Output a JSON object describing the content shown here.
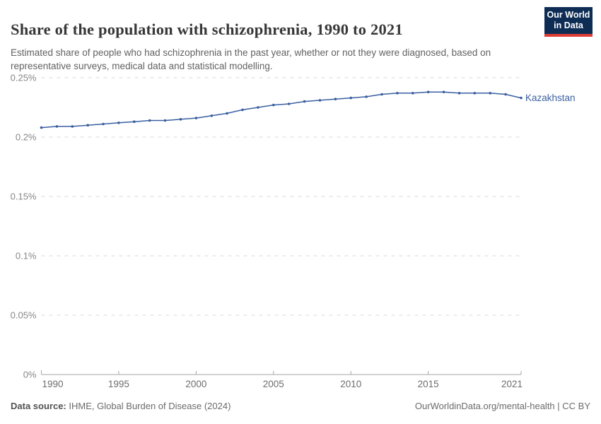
{
  "header": {
    "title": "Share of the population with schizophrenia, 1990 to 2021",
    "subtitle": "Estimated share of people who had schizophrenia in the past year, whether or not they were diagnosed, based on representative surveys, medical data and statistical modelling.",
    "logo": {
      "line1": "Our World",
      "line2": "in Data"
    }
  },
  "footer": {
    "datasource_label": "Data source:",
    "datasource_value": " IHME, Global Burden of Disease (2024)",
    "license": "OurWorldinData.org/mental-health | CC BY"
  },
  "colors": {
    "line": "#3a5fa0",
    "logo_bg": "#0e2d55",
    "logo_accent": "#dc3d33",
    "gridline": "#dadada",
    "axis": "#a5a5a5"
  },
  "chart_data": {
    "type": "line",
    "title": "Share of the population with schizophrenia, 1990 to 2021",
    "xlabel": "",
    "ylabel": "",
    "unit": "%",
    "grid": "horizontal-dashed",
    "legend": "end-of-line-label",
    "xlim": [
      1990,
      2021
    ],
    "ylim": [
      0,
      0.25
    ],
    "x": [
      1990,
      1991,
      1992,
      1993,
      1994,
      1995,
      1996,
      1997,
      1998,
      1999,
      2000,
      2001,
      2002,
      2003,
      2004,
      2005,
      2006,
      2007,
      2008,
      2009,
      2010,
      2011,
      2012,
      2013,
      2014,
      2015,
      2016,
      2017,
      2018,
      2019,
      2020,
      2021
    ],
    "xticks": [
      1990,
      1995,
      2000,
      2005,
      2010,
      2015,
      2021
    ],
    "yticks": [
      0,
      0.05,
      0.1,
      0.15,
      0.2,
      0.25
    ],
    "ytick_labels": [
      "0%",
      "0.05%",
      "0.1%",
      "0.15%",
      "0.2%",
      "0.25%"
    ],
    "series": [
      {
        "name": "Kazakhstan",
        "color": "#3a5fa0",
        "values": [
          0.208,
          0.209,
          0.209,
          0.21,
          0.211,
          0.212,
          0.213,
          0.214,
          0.214,
          0.215,
          0.216,
          0.218,
          0.22,
          0.223,
          0.225,
          0.227,
          0.228,
          0.23,
          0.231,
          0.232,
          0.233,
          0.234,
          0.236,
          0.237,
          0.237,
          0.238,
          0.238,
          0.237,
          0.237,
          0.237,
          0.236,
          0.233
        ]
      }
    ]
  }
}
